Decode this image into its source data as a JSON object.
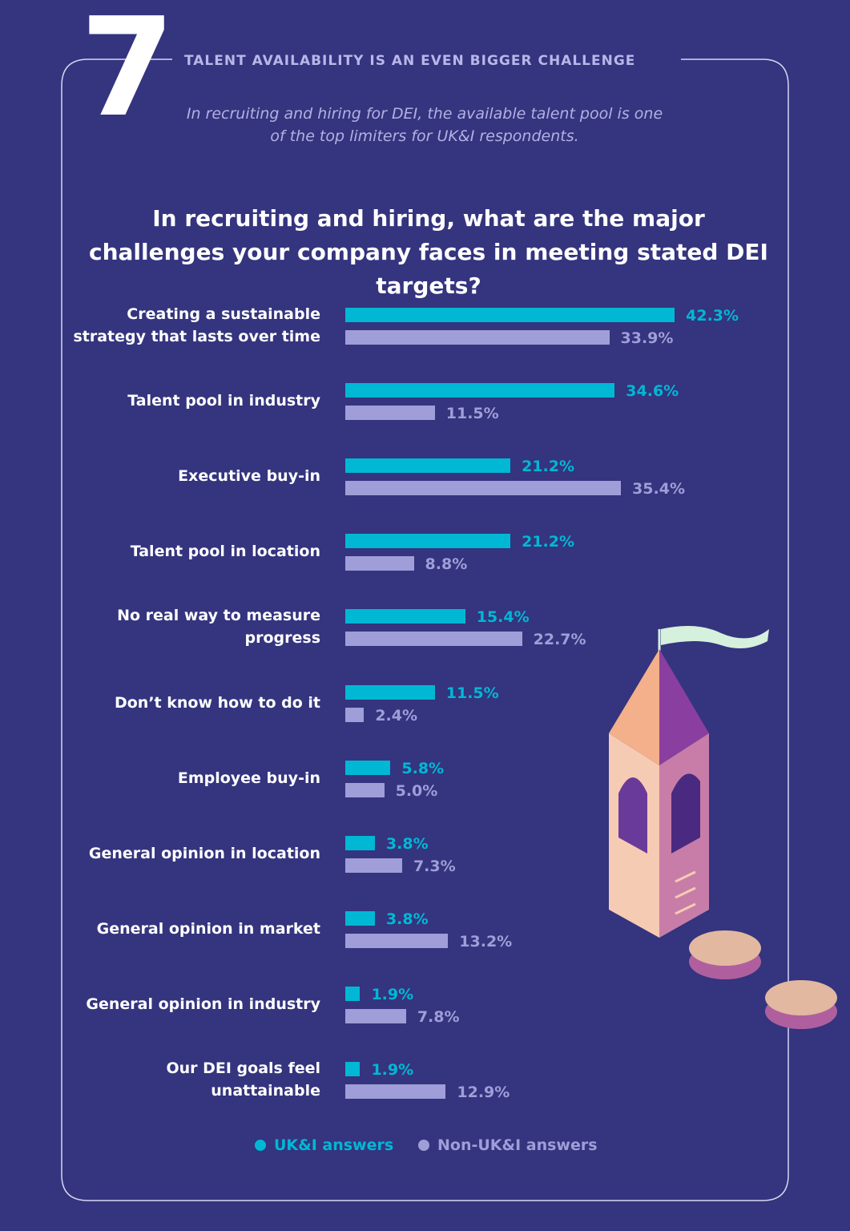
{
  "chart_data": {
    "type": "bar",
    "orientation": "horizontal",
    "number": "7",
    "title": "TALENT AVAILABILITY IS AN EVEN BIGGER CHALLENGE",
    "subtitle": "In recruiting and hiring for DEI, the available talent pool is one of the top limiters for UK&I respondents.",
    "question": "In recruiting and hiring, what are the major challenges your company faces in meeting stated DEI targets?",
    "categories": [
      "Creating a sustainable strategy that lasts over time",
      "Talent pool in industry",
      "Executive buy-in",
      "Talent pool in location",
      "No real way to measure progress",
      "Don’t know how to do it",
      "Employee buy-in",
      "General opinion in location",
      "General opinion in market",
      "General opinion in industry",
      "Our DEI goals feel unattainable"
    ],
    "series": [
      {
        "name": "UK&I answers",
        "color": "#00b8d4",
        "values": [
          42.3,
          34.6,
          21.2,
          21.2,
          15.4,
          11.5,
          5.8,
          3.8,
          3.8,
          1.9,
          1.9
        ],
        "value_labels": [
          "42.3%",
          "34.6%",
          "21.2%",
          "21.2%",
          "15.4%",
          "11.5%",
          "5.8%",
          "3.8%",
          "3.8%",
          "1.9%",
          "1.9%"
        ]
      },
      {
        "name": "Non-UK&I answers",
        "color": "#a09ed8",
        "values": [
          33.9,
          11.5,
          35.4,
          8.8,
          22.7,
          2.4,
          5.0,
          7.3,
          13.2,
          7.8,
          12.9
        ],
        "value_labels": [
          "33.9%",
          "11.5%",
          "35.4%",
          "8.8%",
          "22.7%",
          "2.4%",
          "5.0%",
          "7.3%",
          "13.2%",
          "7.8%",
          "12.9%"
        ]
      }
    ]
  }
}
